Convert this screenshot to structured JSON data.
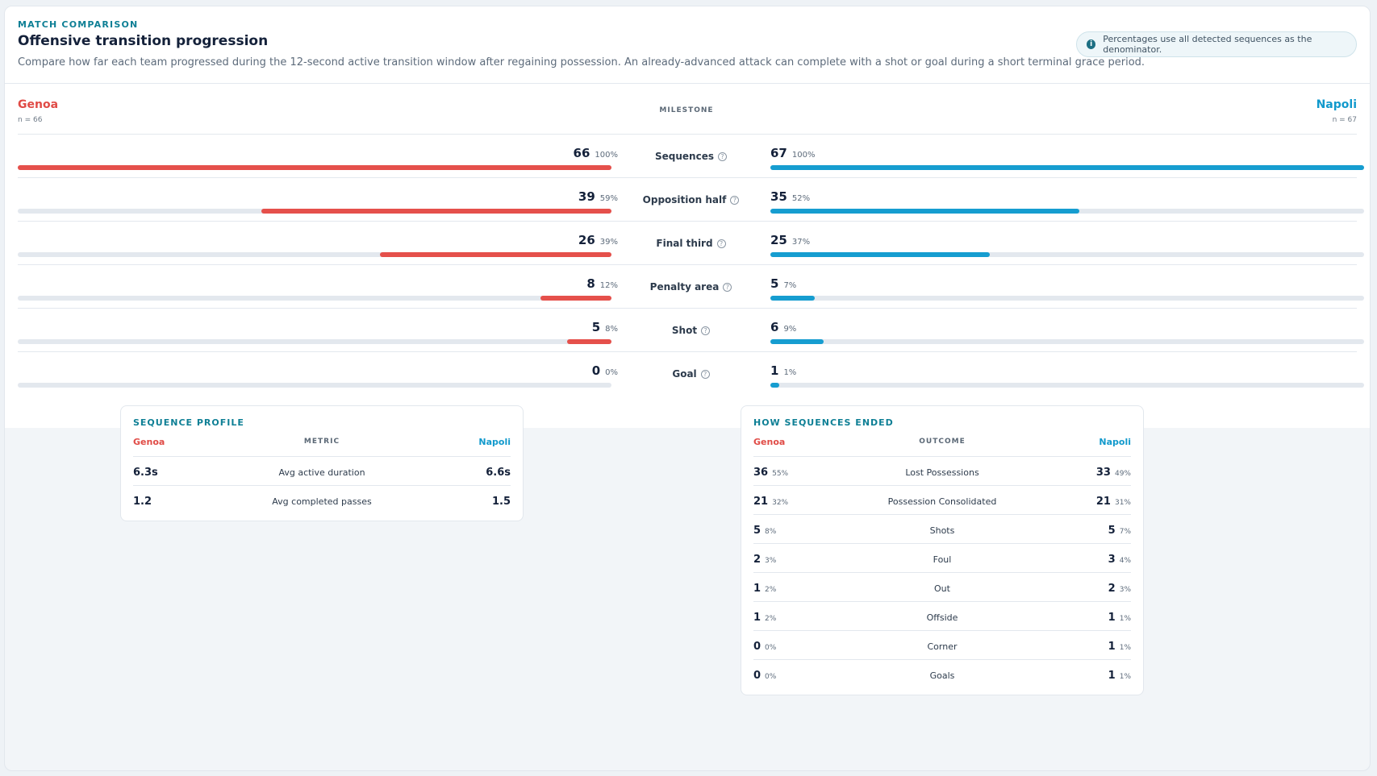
{
  "header": {
    "eyebrow": "MATCH COMPARISON",
    "title": "Offensive transition progression",
    "description": "Compare how far each team progressed during the 12-second active transition window after regaining possession. An already-advanced attack can complete with a shot or goal during a short terminal grace period.",
    "note": "Percentages use all detected sequences as the denominator."
  },
  "teams": {
    "left": {
      "name": "Genoa",
      "n": "n = 66",
      "color": "#e5504b"
    },
    "right": {
      "name": "Napoli",
      "n": "n = 67",
      "color": "#169dd0"
    }
  },
  "milestone_header": "MILESTONE",
  "milestones": [
    {
      "label": "Sequences",
      "left_value": "66",
      "left_pct": "100%",
      "left_frac": 1.0,
      "right_value": "67",
      "right_pct": "100%",
      "right_frac": 1.0
    },
    {
      "label": "Opposition half",
      "left_value": "39",
      "left_pct": "59%",
      "left_frac": 0.59,
      "right_value": "35",
      "right_pct": "52%",
      "right_frac": 0.52
    },
    {
      "label": "Final third",
      "left_value": "26",
      "left_pct": "39%",
      "left_frac": 0.39,
      "right_value": "25",
      "right_pct": "37%",
      "right_frac": 0.37
    },
    {
      "label": "Penalty area",
      "left_value": "8",
      "left_pct": "12%",
      "left_frac": 0.12,
      "right_value": "5",
      "right_pct": "7%",
      "right_frac": 0.075
    },
    {
      "label": "Shot",
      "left_value": "5",
      "left_pct": "8%",
      "left_frac": 0.075,
      "right_value": "6",
      "right_pct": "9%",
      "right_frac": 0.09
    },
    {
      "label": "Goal",
      "left_value": "0",
      "left_pct": "0%",
      "left_frac": 0.0,
      "right_value": "1",
      "right_pct": "1%",
      "right_frac": 0.015
    }
  ],
  "profile": {
    "title": "SEQUENCE PROFILE",
    "left_team": "Genoa",
    "column": "METRIC",
    "right_team": "Napoli",
    "rows": [
      {
        "left": "6.3s",
        "metric": "Avg active duration",
        "right": "6.6s"
      },
      {
        "left": "1.2",
        "metric": "Avg completed passes",
        "right": "1.5"
      }
    ]
  },
  "endings": {
    "title": "HOW SEQUENCES ENDED",
    "left_team": "Genoa",
    "column": "OUTCOME",
    "right_team": "Napoli",
    "rows": [
      {
        "left": "36",
        "left_pct": "55%",
        "outcome": "Lost Possessions",
        "right": "33",
        "right_pct": "49%"
      },
      {
        "left": "21",
        "left_pct": "32%",
        "outcome": "Possession Consolidated",
        "right": "21",
        "right_pct": "31%"
      },
      {
        "left": "5",
        "left_pct": "8%",
        "outcome": "Shots",
        "right": "5",
        "right_pct": "7%"
      },
      {
        "left": "2",
        "left_pct": "3%",
        "outcome": "Foul",
        "right": "3",
        "right_pct": "4%"
      },
      {
        "left": "1",
        "left_pct": "2%",
        "outcome": "Out",
        "right": "2",
        "right_pct": "3%"
      },
      {
        "left": "1",
        "left_pct": "2%",
        "outcome": "Offside",
        "right": "1",
        "right_pct": "1%"
      },
      {
        "left": "0",
        "left_pct": "0%",
        "outcome": "Corner",
        "right": "1",
        "right_pct": "1%"
      },
      {
        "left": "0",
        "left_pct": "0%",
        "outcome": "Goals",
        "right": "1",
        "right_pct": "1%"
      }
    ]
  }
}
